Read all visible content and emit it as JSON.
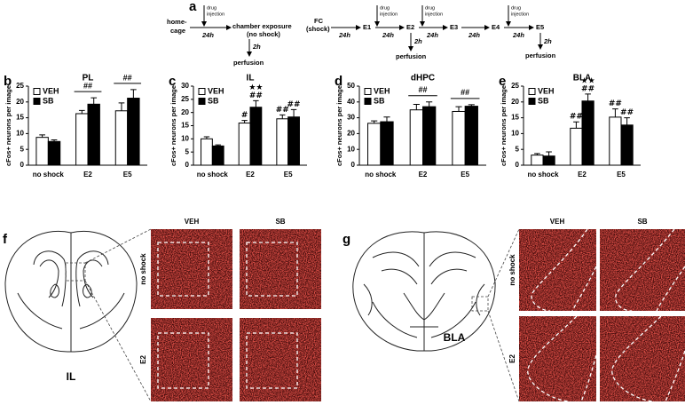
{
  "panel_a": {
    "label": "a",
    "home_cage": [
      "home-",
      "cage"
    ],
    "chamber": [
      "chamber exposure",
      "(no shock)"
    ],
    "fc": [
      "FC",
      "(shock)"
    ],
    "days": [
      "E1",
      "E2",
      "E3",
      "E4",
      "E5"
    ],
    "intervals": [
      "24h",
      "24h",
      "24h",
      "24h",
      "24h",
      "24h"
    ],
    "injections": [
      [
        "drug",
        "injection"
      ],
      [
        "drug",
        "injection"
      ],
      [
        "drug",
        "injection"
      ],
      [
        "drug",
        "injection"
      ]
    ],
    "delays": [
      "2h",
      "2h",
      "2h"
    ],
    "perfusion": [
      "perfusion",
      "perfusion",
      "perfusion"
    ]
  },
  "chart_data": [
    {
      "type": "bar",
      "panel": "b",
      "title": "PL",
      "ylabel": "cFos+ neurons per image",
      "categories": [
        "no shock",
        "E2",
        "E5"
      ],
      "series": [
        {
          "name": "VEH",
          "color": "#ffffff",
          "values": [
            8.8,
            16.3,
            17.2
          ],
          "errors": [
            0.8,
            1.0,
            2.5
          ]
        },
        {
          "name": "SB",
          "color": "#000000",
          "values": [
            7.5,
            19.3,
            21.2
          ],
          "errors": [
            0.5,
            2.0,
            2.7
          ]
        }
      ],
      "ylim": [
        0,
        25
      ],
      "yticks": [
        0,
        5,
        10,
        15,
        20,
        25
      ],
      "annotations": [
        {
          "text": "##",
          "category": 1
        },
        {
          "text": "##",
          "category": 2
        }
      ]
    },
    {
      "type": "bar",
      "panel": "c",
      "title": "IL",
      "ylabel": "cFos+ neurons per image",
      "categories": [
        "no shock",
        "E2",
        "E5"
      ],
      "series": [
        {
          "name": "VEH",
          "color": "#ffffff",
          "values": [
            10.0,
            16.0,
            17.6
          ],
          "errors": [
            0.8,
            1.0,
            1.5
          ]
        },
        {
          "name": "SB",
          "color": "#000000",
          "values": [
            7.3,
            22.0,
            18.3
          ],
          "errors": [
            0.4,
            2.5,
            2.8
          ]
        }
      ],
      "ylim": [
        0,
        30
      ],
      "yticks": [
        0,
        5,
        10,
        15,
        20,
        25,
        30
      ],
      "annotations": [
        {
          "text": "#",
          "category": 1,
          "series": 0
        },
        {
          "text": "##",
          "category": 1,
          "series": 1
        },
        {
          "text": "★★",
          "category": 1,
          "series": 1
        },
        {
          "text": "##",
          "category": 2,
          "series": 0
        },
        {
          "text": "##",
          "category": 2,
          "series": 1
        }
      ]
    },
    {
      "type": "bar",
      "panel": "d",
      "title": "dHPC",
      "ylabel": "cFos+ neurons per image",
      "categories": [
        "no shock",
        "E2",
        "E5"
      ],
      "series": [
        {
          "name": "VEH",
          "color": "#ffffff",
          "values": [
            26.5,
            35.0,
            34.0
          ],
          "errors": [
            1.5,
            3.5,
            3.0
          ]
        },
        {
          "name": "SB",
          "color": "#000000",
          "values": [
            27.5,
            37.0,
            37.3
          ],
          "errors": [
            3.0,
            3.0,
            1.0
          ]
        }
      ],
      "ylim": [
        0,
        50
      ],
      "yticks": [
        0,
        10,
        20,
        30,
        40,
        50
      ],
      "annotations": [
        {
          "text": "##",
          "category": 1
        },
        {
          "text": "##",
          "category": 2
        }
      ]
    },
    {
      "type": "bar",
      "panel": "e",
      "title": "BLA",
      "ylabel": "cFos+ neurons per image",
      "categories": [
        "no shock",
        "E2",
        "E5"
      ],
      "series": [
        {
          "name": "VEH",
          "color": "#ffffff",
          "values": [
            3.2,
            11.7,
            15.2
          ],
          "errors": [
            0.5,
            2.0,
            2.6
          ]
        },
        {
          "name": "SB",
          "color": "#000000",
          "values": [
            2.9,
            20.3,
            12.7
          ],
          "errors": [
            1.3,
            2.2,
            2.3
          ]
        }
      ],
      "ylim": [
        0,
        25
      ],
      "yticks": [
        0,
        5,
        10,
        15,
        20,
        25
      ],
      "annotations": [
        {
          "text": "##",
          "category": 1,
          "series": 0
        },
        {
          "text": "##",
          "category": 1,
          "series": 1
        },
        {
          "text": "★★",
          "category": 1,
          "series": 1
        },
        {
          "text": "##",
          "category": 2,
          "series": 0
        },
        {
          "text": "##",
          "category": 2,
          "series": 1
        }
      ]
    }
  ],
  "panel_f": {
    "label": "f",
    "region": "IL",
    "columns": [
      "VEH",
      "SB"
    ],
    "rows": [
      "no shock",
      "E2"
    ]
  },
  "panel_g": {
    "label": "g",
    "region": "BLA",
    "columns": [
      "VEH",
      "SB"
    ],
    "rows": [
      "no shock",
      "E2"
    ]
  }
}
